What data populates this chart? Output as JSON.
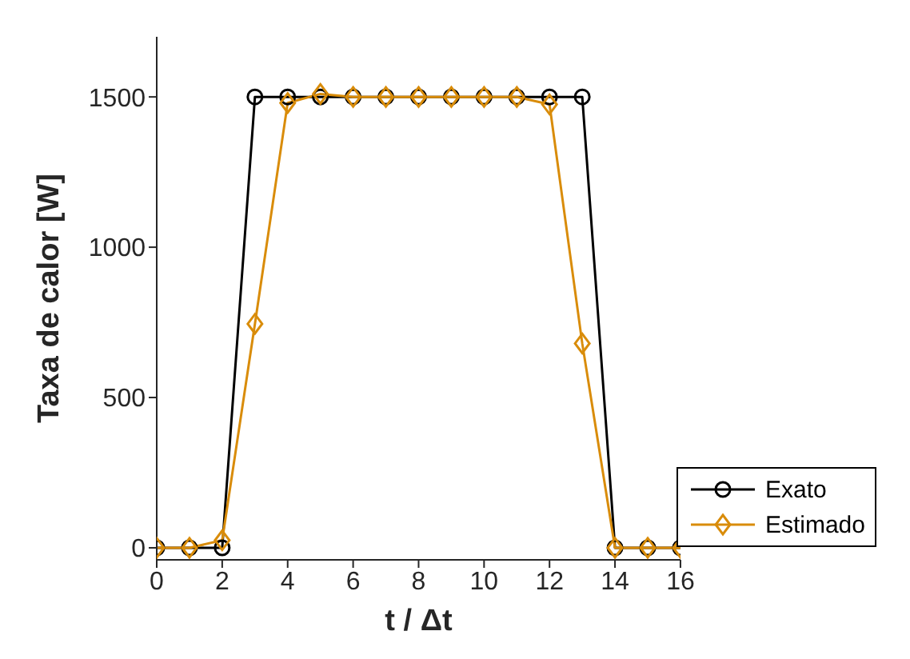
{
  "chart_data": {
    "type": "line",
    "xlabel": "t / Δt",
    "ylabel": "Taxa de calor [W]",
    "x": [
      0,
      1,
      2,
      3,
      4,
      5,
      6,
      7,
      8,
      9,
      10,
      11,
      12,
      13,
      14,
      15,
      16
    ],
    "series": [
      {
        "name": "Exato",
        "color": "#000000",
        "marker": "circle",
        "values": [
          0,
          0,
          0,
          1500,
          1500,
          1500,
          1500,
          1500,
          1500,
          1500,
          1500,
          1500,
          1500,
          1500,
          0,
          0,
          0
        ]
      },
      {
        "name": "Estimado",
        "color": "#d98c0a",
        "marker": "diamond",
        "values": [
          0,
          0,
          25,
          745,
          1480,
          1510,
          1500,
          1500,
          1500,
          1500,
          1500,
          1500,
          1475,
          680,
          0,
          0,
          0
        ]
      }
    ],
    "xlim": [
      0,
      16
    ],
    "xticks": [
      0,
      2,
      4,
      6,
      8,
      10,
      12,
      14,
      16
    ],
    "ylim": [
      -40,
      1700
    ],
    "yticks": [
      0,
      500,
      1000,
      1500
    ],
    "grid": false,
    "legend": "bottom right",
    "line_style": "solid"
  }
}
